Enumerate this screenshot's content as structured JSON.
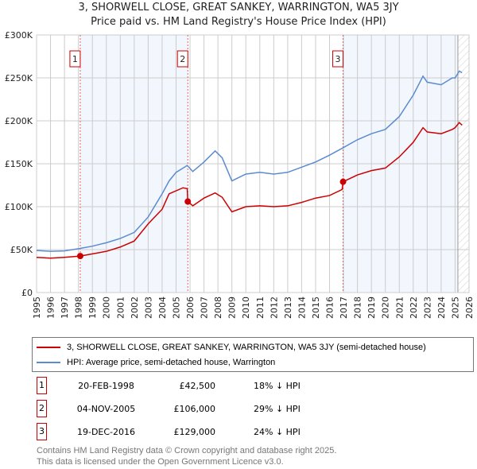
{
  "chart_data": {
    "type": "line",
    "title": "3, SHORWELL CLOSE, GREAT SANKEY, WARRINGTON, WA5 3JY",
    "subtitle": "Price paid vs. HM Land Registry's House Price Index (HPI)",
    "xlim": [
      1995,
      2026
    ],
    "ylim": [
      0,
      300000
    ],
    "y_ticks": [
      {
        "v": 0,
        "label": "£0"
      },
      {
        "v": 50000,
        "label": "£50K"
      },
      {
        "v": 100000,
        "label": "£100K"
      },
      {
        "v": 150000,
        "label": "£150K"
      },
      {
        "v": 200000,
        "label": "£200K"
      },
      {
        "v": 250000,
        "label": "£250K"
      },
      {
        "v": 300000,
        "label": "£300K"
      }
    ],
    "x_ticks": [
      "1995",
      "1996",
      "1997",
      "1998",
      "1999",
      "2000",
      "2001",
      "2002",
      "2003",
      "2004",
      "2005",
      "2006",
      "2007",
      "2008",
      "2009",
      "2010",
      "2011",
      "2012",
      "2013",
      "2014",
      "2015",
      "2016",
      "2017",
      "2018",
      "2019",
      "2020",
      "2021",
      "2022",
      "2023",
      "2024",
      "2025",
      "2026"
    ],
    "grid": true,
    "series": [
      {
        "name": "3, SHORWELL CLOSE, GREAT SANKEY, WARRINGTON, WA5 3JY (semi-detached house)",
        "color": "#cc0000",
        "x": [
          1995,
          1996,
          1997,
          1998.13,
          1999,
          2000,
          2001,
          2002,
          2003,
          2004,
          2004.5,
          2005.5,
          2005.8,
          2005.84,
          2006.2,
          2007,
          2007.8,
          2008.3,
          2009,
          2010,
          2011,
          2012,
          2013,
          2014,
          2015,
          2016,
          2016.9,
          2016.97,
          2018,
          2019,
          2020,
          2021,
          2022,
          2022.7,
          2023,
          2024,
          2024.8,
          2025,
          2025.3,
          2025.5
        ],
        "y": [
          41000,
          40000,
          41000,
          42500,
          45000,
          48000,
          53000,
          60000,
          80000,
          97000,
          115000,
          122000,
          121000,
          106000,
          101000,
          110000,
          116000,
          111000,
          94000,
          100000,
          101000,
          100000,
          101000,
          105000,
          110000,
          113000,
          120000,
          129000,
          137000,
          142000,
          145000,
          158000,
          175000,
          192000,
          187000,
          185000,
          190000,
          192000,
          198000,
          195000
        ]
      },
      {
        "name": "HPI: Average price, semi-detached house, Warrington",
        "color": "#5b8bd0",
        "x": [
          1995,
          1996,
          1997,
          1998,
          1999,
          2000,
          2001,
          2002,
          2003,
          2004,
          2004.5,
          2005,
          2005.8,
          2006.2,
          2007,
          2007.8,
          2008.3,
          2009,
          2010,
          2011,
          2012,
          2013,
          2014,
          2015,
          2016,
          2016.9,
          2018,
          2019,
          2020,
          2021,
          2022,
          2022.7,
          2023,
          2024,
          2024.8,
          2025,
          2025.3,
          2025.5
        ],
        "y": [
          49000,
          48000,
          48500,
          51000,
          54000,
          58000,
          63000,
          70000,
          88000,
          115000,
          130000,
          140000,
          148000,
          141000,
          152000,
          165000,
          157000,
          130000,
          138000,
          140000,
          138000,
          140000,
          146000,
          152000,
          160000,
          168000,
          178000,
          185000,
          190000,
          205000,
          230000,
          252000,
          245000,
          242000,
          250000,
          250000,
          258000,
          256000
        ]
      }
    ],
    "sales": [
      {
        "id": "1",
        "x": 1998.13,
        "y": 42500,
        "date": "20-FEB-1998",
        "price": "£42,500",
        "hpi": "18% ↓ HPI"
      },
      {
        "id": "2",
        "x": 2005.84,
        "y": 106000,
        "date": "04-NOV-2005",
        "price": "£106,000",
        "hpi": "29% ↓ HPI"
      },
      {
        "id": "3",
        "x": 2016.97,
        "y": 129000,
        "date": "19-DEC-2016",
        "price": "£129,000",
        "hpi": "24% ↓ HPI"
      }
    ]
  },
  "footer": [
    "Contains HM Land Registry data © Crown copyright and database right 2025.",
    "This data is licensed under the Open Government Licence v3.0."
  ]
}
